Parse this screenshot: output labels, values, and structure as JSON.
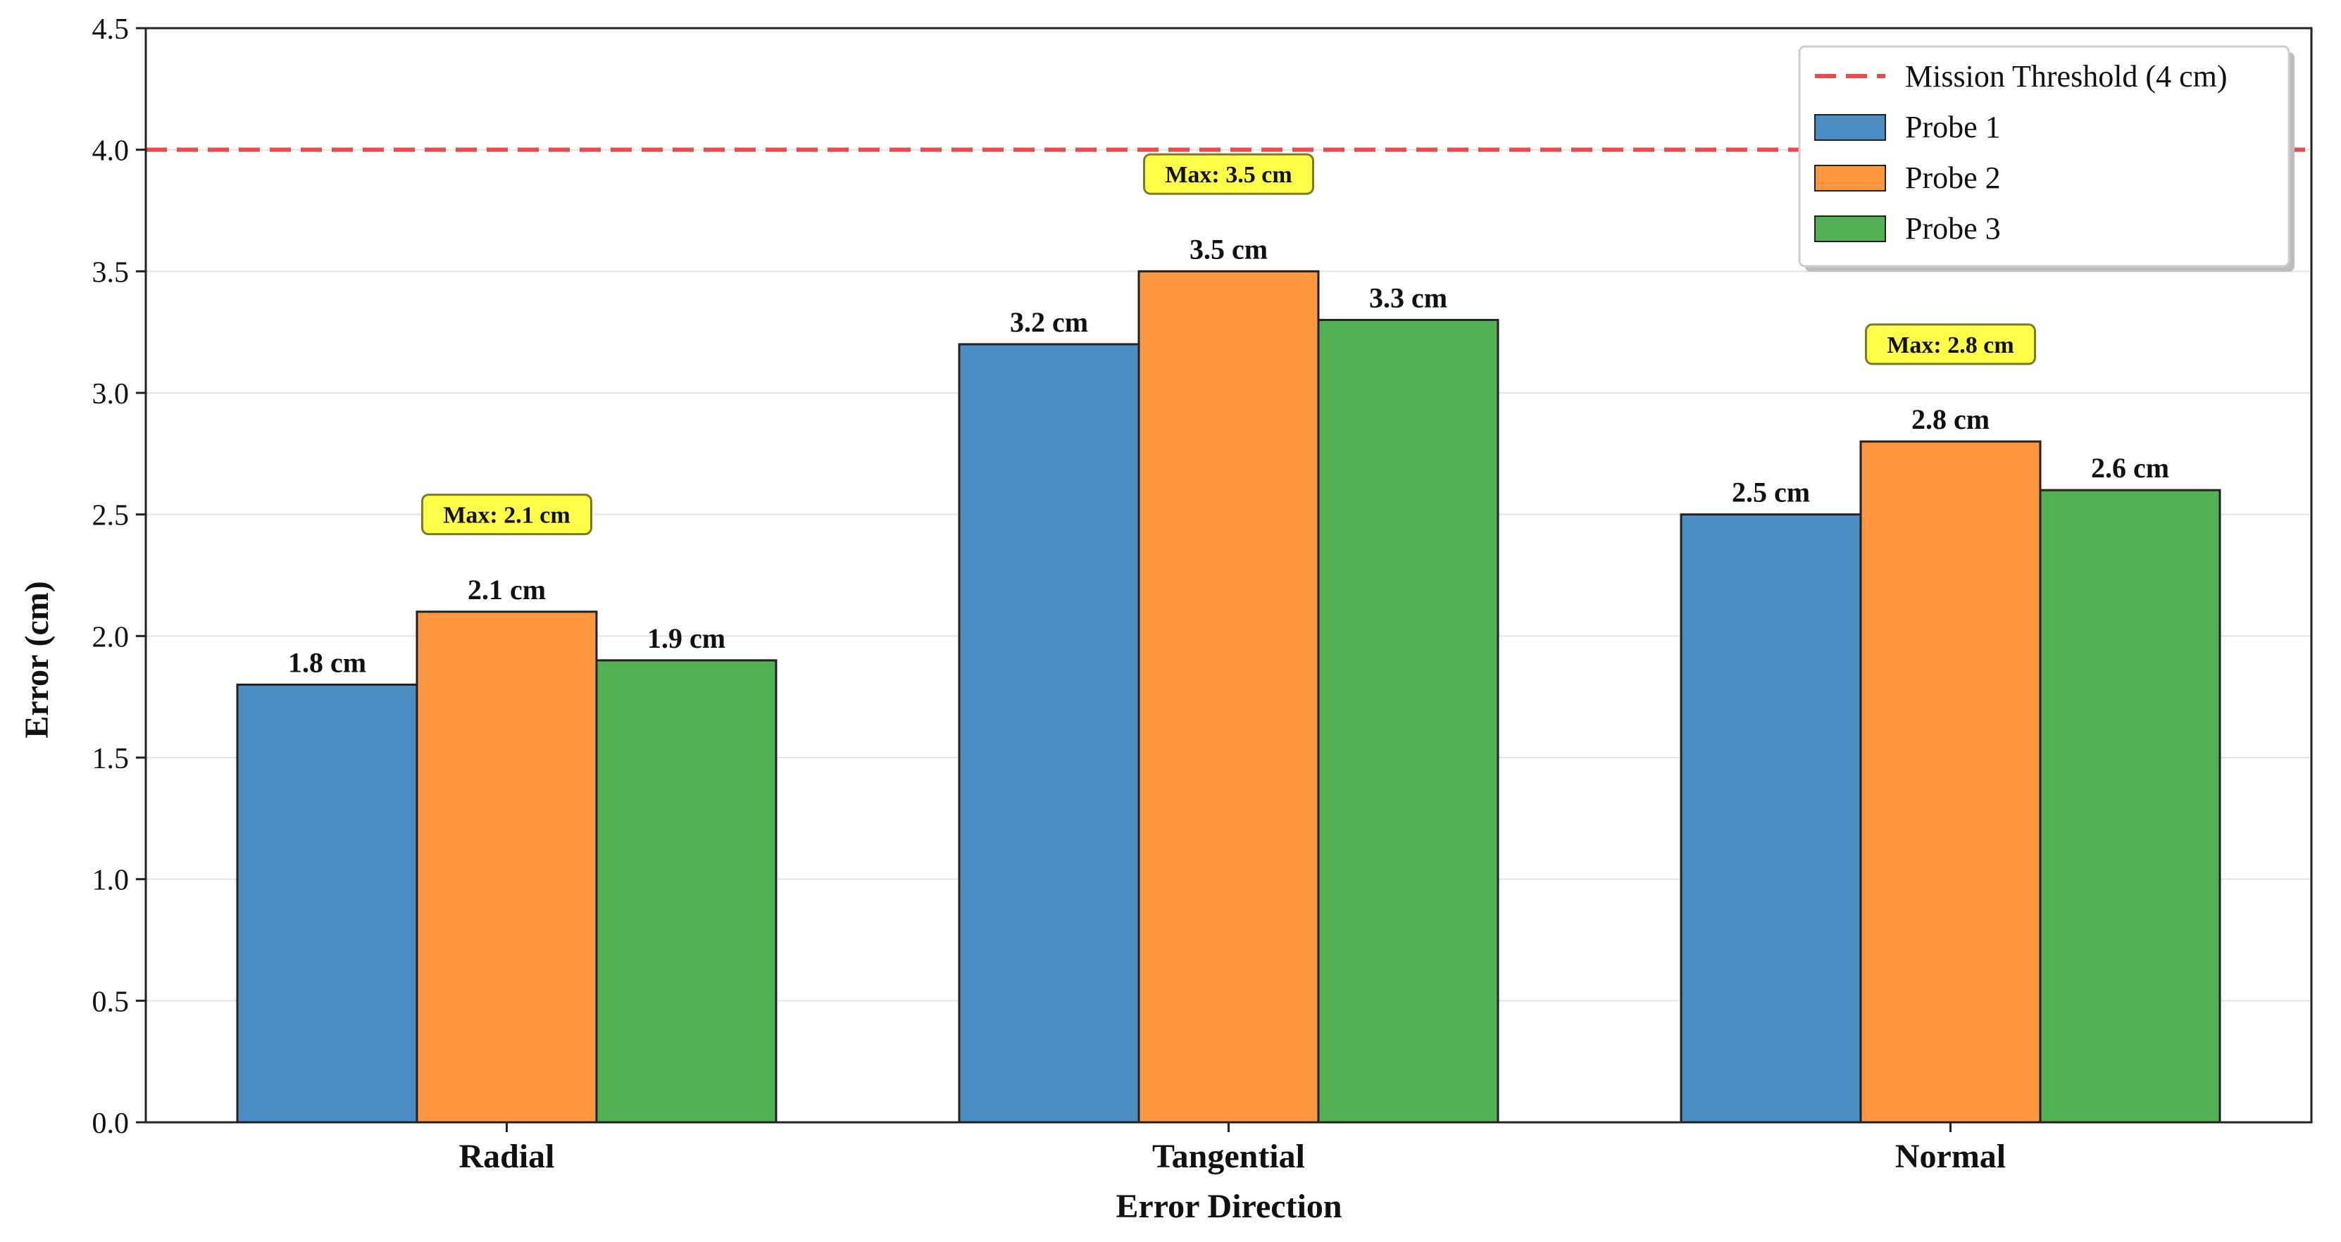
{
  "chart_data": {
    "type": "bar",
    "categories": [
      "Radial",
      "Tangential",
      "Normal"
    ],
    "xlabel": "Error Direction",
    "ylabel": "Error (cm)",
    "ylim": [
      0,
      4.5
    ],
    "yticks": [
      "0.0",
      "0.5",
      "1.0",
      "1.5",
      "2.0",
      "2.5",
      "3.0",
      "3.5",
      "4.0",
      "4.5"
    ],
    "grid": "horizontal",
    "legend_position": "top-right",
    "series": [
      {
        "name": "Probe 1",
        "color": "#4a8ec4",
        "values": [
          1.8,
          3.2,
          2.5
        ],
        "labels": [
          "1.8 cm",
          "3.2 cm",
          "2.5 cm"
        ]
      },
      {
        "name": "Probe 2",
        "color": "#fd963e",
        "values": [
          2.1,
          3.5,
          2.8
        ],
        "labels": [
          "2.1 cm",
          "3.5 cm",
          "2.8 cm"
        ]
      },
      {
        "name": "Probe 3",
        "color": "#52b155",
        "values": [
          1.9,
          3.3,
          2.6
        ],
        "labels": [
          "1.9 cm",
          "3.3 cm",
          "2.6 cm"
        ]
      }
    ],
    "threshold": {
      "value": 4.0,
      "label": "Mission Threshold (4 cm)",
      "color": "#f04848"
    },
    "max_annotations": [
      {
        "category": "Radial",
        "value": 2.1,
        "y": 2.5,
        "text": "Max: 2.1 cm"
      },
      {
        "category": "Tangential",
        "value": 3.5,
        "y": 3.9,
        "text": "Max: 3.5 cm"
      },
      {
        "category": "Normal",
        "value": 2.8,
        "y": 3.2,
        "text": "Max: 2.8 cm"
      }
    ],
    "annotation_style": {
      "fill": "#ffff4a",
      "stroke": "#7a7a2a"
    }
  }
}
